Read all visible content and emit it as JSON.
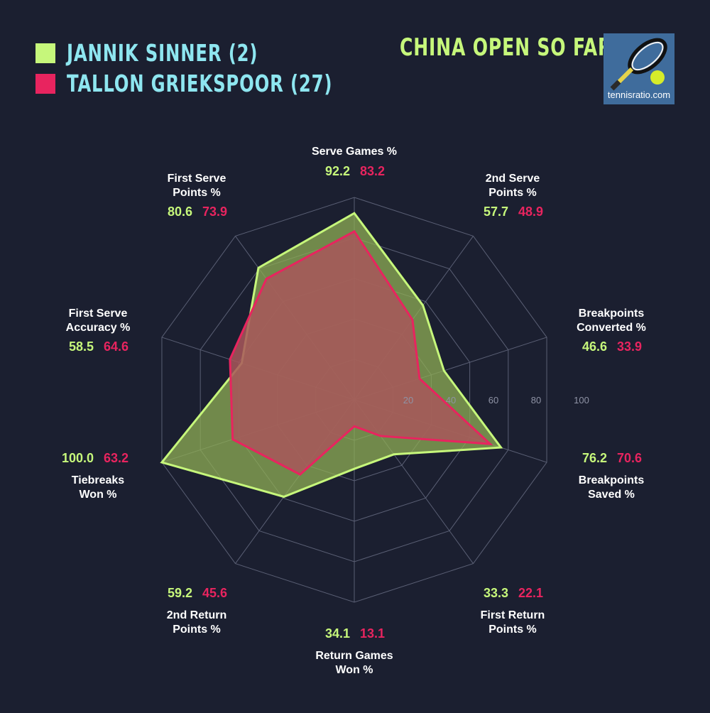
{
  "title": "CHINA OPEN SO FAR",
  "logo_text": "tennisratio.com",
  "colors": {
    "background": "#1b1f30",
    "player1": "#c6f77b",
    "player2": "#e8245f",
    "legend_text": "#8ee6f0"
  },
  "players": [
    {
      "name": "JANNIK SINNER (2)",
      "color": "#c6f77b"
    },
    {
      "name": "TALLON GRIEKSPOOR (27)",
      "color": "#e8245f"
    }
  ],
  "chart_data": {
    "type": "radar",
    "rlim": [
      0,
      100
    ],
    "ticks": [
      "20",
      "40",
      "60",
      "80",
      "100"
    ],
    "grid": true,
    "axes": [
      {
        "label": [
          "Serve Games %"
        ]
      },
      {
        "label": [
          "2nd Serve",
          "Points %"
        ]
      },
      {
        "label": [
          "Breakpoints",
          "Converted %"
        ]
      },
      {
        "label": [
          "Breakpoints",
          "Saved %"
        ]
      },
      {
        "label": [
          "First Return",
          "Points %"
        ]
      },
      {
        "label": [
          "Return Games",
          "Won %"
        ]
      },
      {
        "label": [
          "2nd Return",
          "Points %"
        ]
      },
      {
        "label": [
          "Tiebreaks",
          "Won %"
        ]
      },
      {
        "label": [
          "First Serve",
          "Accuracy %"
        ]
      },
      {
        "label": [
          "First Serve",
          "Points %"
        ]
      }
    ],
    "series": [
      {
        "name": "JANNIK SINNER (2)",
        "values": [
          92.2,
          57.7,
          46.6,
          76.2,
          33.3,
          34.1,
          59.2,
          100.0,
          58.5,
          80.6
        ]
      },
      {
        "name": "TALLON GRIEKSPOOR (27)",
        "values": [
          83.2,
          48.9,
          33.9,
          70.6,
          22.1,
          13.1,
          45.6,
          63.2,
          64.6,
          73.9
        ]
      }
    ],
    "value_labels": [
      [
        "92.2",
        "83.2"
      ],
      [
        "57.7",
        "48.9"
      ],
      [
        "46.6",
        "33.9"
      ],
      [
        "76.2",
        "70.6"
      ],
      [
        "33.3",
        "22.1"
      ],
      [
        "34.1",
        "13.1"
      ],
      [
        "59.2",
        "45.6"
      ],
      [
        "100.0",
        "63.2"
      ],
      [
        "58.5",
        "64.6"
      ],
      [
        "80.6",
        "73.9"
      ]
    ]
  }
}
